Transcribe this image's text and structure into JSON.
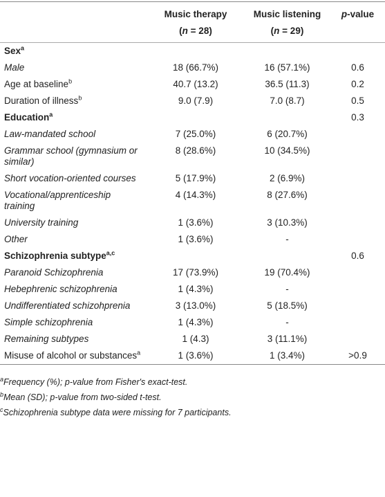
{
  "table": {
    "header": [
      {
        "title": "Music therapy",
        "pre": "(",
        "var": "n",
        "post": " = 28)"
      },
      {
        "title": "Music listening",
        "pre": "(",
        "var": "n",
        "post": " = 29)"
      },
      {
        "var": "p",
        "post": "-value"
      }
    ],
    "rows": [
      {
        "label": "Sex",
        "sup": "a",
        "style": "bold",
        "cells": [
          null,
          null,
          null
        ]
      },
      {
        "label": "Male",
        "style": "italic",
        "cells": [
          "18 (66.7%)",
          "16 (57.1%)",
          "0.6"
        ]
      },
      {
        "label": "Age at baseline",
        "sup": "b",
        "style": "normal",
        "cells": [
          "40.7 (13.2)",
          "36.5 (11.3)",
          "0.2"
        ]
      },
      {
        "label": "Duration of illness",
        "sup": "b",
        "style": "normal",
        "cells": [
          "9.0 (7.9)",
          "7.0 (8.7)",
          "0.5"
        ]
      },
      {
        "label": "Education",
        "sup": "a",
        "style": "bold",
        "cells": [
          null,
          null,
          "0.3"
        ]
      },
      {
        "label": "Law-mandated school",
        "style": "italic",
        "cells": [
          "7 (25.0%)",
          "6 (20.7%)",
          null
        ]
      },
      {
        "label": "Grammar school (gymnasium or similar)",
        "style": "italic",
        "cells": [
          "8 (28.6%)",
          "10 (34.5%)",
          null
        ]
      },
      {
        "label": "Short vocation-oriented courses",
        "style": "italic",
        "cells": [
          "5 (17.9%)",
          "2 (6.9%)",
          null
        ]
      },
      {
        "label": "Vocational/apprenticeship training",
        "style": "italic",
        "cells": [
          "4 (14.3%)",
          "8 (27.6%)",
          null
        ]
      },
      {
        "label": "University training",
        "style": "italic",
        "cells": [
          "1 (3.6%)",
          "3 (10.3%)",
          null
        ]
      },
      {
        "label": "Other",
        "style": "italic",
        "cells": [
          "1 (3.6%)",
          "-",
          null
        ]
      },
      {
        "label": "Schizophrenia subtype",
        "sup": "a,c",
        "style": "bold",
        "cells": [
          null,
          null,
          "0.6"
        ]
      },
      {
        "label": "Paranoid Schizophrenia",
        "style": "italic",
        "cells": [
          "17 (73.9%)",
          "19 (70.4%)",
          null
        ]
      },
      {
        "label": "Hebephrenic schizophrenia",
        "style": "italic",
        "cells": [
          "1 (4.3%)",
          "-",
          null
        ]
      },
      {
        "label": "Undifferentiated schizohprenia",
        "style": "italic",
        "cells": [
          "3 (13.0%)",
          "5 (18.5%)",
          null
        ]
      },
      {
        "label": "Simple schizophrenia",
        "style": "italic",
        "cells": [
          "1 (4.3%)",
          "-",
          null
        ]
      },
      {
        "label": "Remaining subtypes",
        "style": "italic",
        "cells": [
          "1 (4.3)",
          "3 (11.1%)",
          null
        ]
      },
      {
        "label": "Misuse of alcohol or substances",
        "sup": "a",
        "style": "normal",
        "cells": [
          "1 (3.6%)",
          "1 (3.4%)",
          ">0.9"
        ]
      }
    ],
    "footnotes": [
      {
        "sup": "a",
        "text": "Frequency (%); p-value from Fisher's exact-test."
      },
      {
        "sup": "b",
        "text": "Mean (SD); p-value from two-sided t-test."
      },
      {
        "sup": "c",
        "text": "Schizophrenia subtype data were missing for 7 participants."
      }
    ]
  }
}
